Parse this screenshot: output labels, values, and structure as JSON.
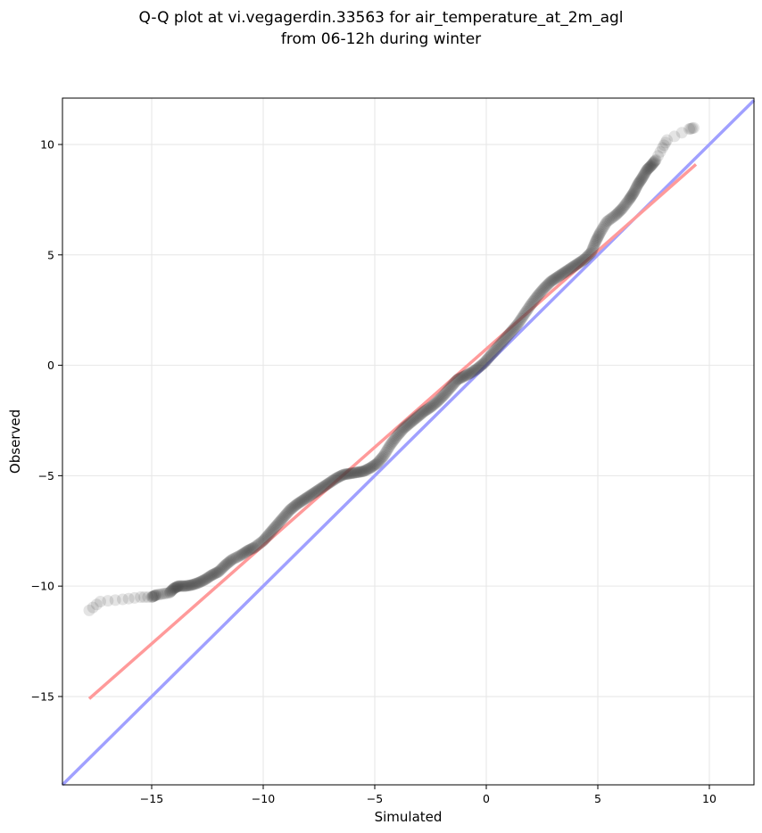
{
  "chart_data": {
    "type": "scatter",
    "title_lines": [
      "Q-Q plot at vi.vegagerdin.33563 for air_temperature_at_2m_agl",
      "from 06-12h during winter"
    ],
    "xlabel": "Simulated",
    "ylabel": "Observed",
    "xlim": [
      -19,
      12
    ],
    "ylim": [
      -19,
      12.1
    ],
    "xticks": [
      -15,
      -10,
      -5,
      0,
      5,
      10
    ],
    "yticks": [
      -15,
      -10,
      -5,
      0,
      5,
      10
    ],
    "xtick_labels": [
      "−15",
      "−10",
      "−5",
      "0",
      "5",
      "10"
    ],
    "ytick_labels": [
      "−15",
      "−10",
      "−5",
      "0",
      "5",
      "10"
    ],
    "grid": true,
    "point_color": "#404040",
    "quantile_points": [
      [
        -17.8,
        -11.1
      ],
      [
        -17.3,
        -10.7
      ],
      [
        -16.3,
        -10.6
      ],
      [
        -15.5,
        -10.5
      ],
      [
        -15.0,
        -10.5
      ],
      [
        -14.8,
        -10.4
      ],
      [
        -14.2,
        -10.3
      ],
      [
        -14.0,
        -10.1
      ],
      [
        -13.8,
        -10.0
      ],
      [
        -13.5,
        -10.0
      ],
      [
        -13.2,
        -9.95
      ],
      [
        -12.9,
        -9.85
      ],
      [
        -12.6,
        -9.7
      ],
      [
        -12.3,
        -9.5
      ],
      [
        -12.0,
        -9.35
      ],
      [
        -11.7,
        -9.05
      ],
      [
        -11.4,
        -8.8
      ],
      [
        -11.0,
        -8.6
      ],
      [
        -10.7,
        -8.4
      ],
      [
        -10.4,
        -8.25
      ],
      [
        -10.0,
        -7.95
      ],
      [
        -9.7,
        -7.6
      ],
      [
        -9.4,
        -7.25
      ],
      [
        -9.1,
        -6.9
      ],
      [
        -8.8,
        -6.55
      ],
      [
        -8.5,
        -6.3
      ],
      [
        -8.2,
        -6.1
      ],
      [
        -7.9,
        -5.9
      ],
      [
        -7.6,
        -5.7
      ],
      [
        -7.3,
        -5.5
      ],
      [
        -7.0,
        -5.3
      ],
      [
        -6.7,
        -5.1
      ],
      [
        -6.4,
        -4.95
      ],
      [
        -6.1,
        -4.9
      ],
      [
        -5.8,
        -4.85
      ],
      [
        -5.5,
        -4.8
      ],
      [
        -5.2,
        -4.65
      ],
      [
        -4.9,
        -4.45
      ],
      [
        -4.6,
        -4.1
      ],
      [
        -4.3,
        -3.6
      ],
      [
        -4.0,
        -3.2
      ],
      [
        -3.7,
        -2.85
      ],
      [
        -3.4,
        -2.6
      ],
      [
        -3.1,
        -2.35
      ],
      [
        -2.8,
        -2.1
      ],
      [
        -2.5,
        -1.9
      ],
      [
        -2.2,
        -1.65
      ],
      [
        -1.9,
        -1.35
      ],
      [
        -1.6,
        -1.0
      ],
      [
        -1.3,
        -0.65
      ],
      [
        -1.0,
        -0.5
      ],
      [
        -0.7,
        -0.35
      ],
      [
        -0.4,
        -0.15
      ],
      [
        -0.1,
        0.1
      ],
      [
        0.2,
        0.45
      ],
      [
        0.5,
        0.8
      ],
      [
        0.8,
        1.15
      ],
      [
        1.1,
        1.5
      ],
      [
        1.4,
        1.85
      ],
      [
        1.7,
        2.3
      ],
      [
        2.0,
        2.75
      ],
      [
        2.3,
        3.15
      ],
      [
        2.6,
        3.5
      ],
      [
        2.9,
        3.8
      ],
      [
        3.2,
        4.0
      ],
      [
        3.5,
        4.2
      ],
      [
        3.8,
        4.4
      ],
      [
        4.1,
        4.6
      ],
      [
        4.4,
        4.8
      ],
      [
        4.7,
        5.1
      ],
      [
        4.9,
        5.6
      ],
      [
        5.1,
        6.0
      ],
      [
        5.4,
        6.5
      ],
      [
        5.8,
        6.8
      ],
      [
        6.1,
        7.1
      ],
      [
        6.4,
        7.5
      ],
      [
        6.6,
        7.8
      ],
      [
        6.8,
        8.2
      ],
      [
        7.0,
        8.5
      ],
      [
        7.2,
        8.85
      ],
      [
        7.4,
        9.05
      ],
      [
        7.6,
        9.3
      ],
      [
        7.9,
        9.85
      ],
      [
        8.1,
        10.2
      ],
      [
        9.1,
        10.7
      ],
      [
        9.3,
        10.75
      ]
    ],
    "reference_lines": [
      {
        "color": "#a0a0ff",
        "x": [
          -19,
          12
        ],
        "y": [
          -19,
          12
        ]
      },
      {
        "color": "#ff9a9a",
        "x": [
          -17.8,
          9.4
        ],
        "y": [
          -15.1,
          9.1
        ]
      }
    ]
  }
}
